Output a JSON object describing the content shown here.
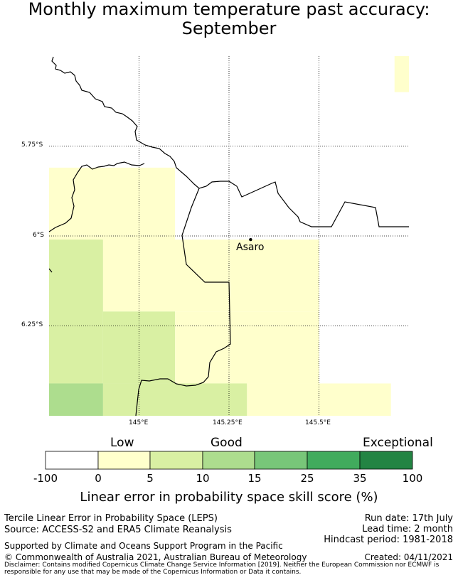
{
  "title": {
    "line1": "Monthly maximum temperature past accuracy:",
    "line2": "September"
  },
  "map": {
    "lat_labels": [
      "5.75°S",
      "6°S",
      "6.25°S"
    ],
    "lon_labels": [
      "145°E",
      "145.25°E",
      "145.5°E"
    ],
    "place_label": "Asaro",
    "bounds": {
      "lon_min": 144.75,
      "lon_max": 145.75,
      "lat_min": -6.5,
      "lat_max": -5.5
    },
    "grid_lons": [
      145.0,
      145.25,
      145.5
    ],
    "grid_lats": [
      -5.75,
      -6.0,
      -6.25
    ],
    "place": {
      "lon": 145.31,
      "lat": -6.01
    },
    "cells": [
      {
        "lon0": 145.71,
        "lon1": 145.75,
        "lat0": -5.5,
        "lat1": -5.6,
        "bin": 1
      },
      {
        "lon0": 144.75,
        "lon1": 145.1,
        "lat0": -5.81,
        "lat1": -6.01,
        "bin": 1
      },
      {
        "lon0": 144.75,
        "lon1": 144.9,
        "lat0": -6.01,
        "lat1": -6.41,
        "bin": 2
      },
      {
        "lon0": 144.9,
        "lon1": 145.5,
        "lat0": -6.01,
        "lat1": -6.21,
        "bin": 1
      },
      {
        "lon0": 144.9,
        "lon1": 145.1,
        "lat0": -6.21,
        "lat1": -6.41,
        "bin": 2
      },
      {
        "lon0": 145.1,
        "lon1": 145.5,
        "lat0": -6.21,
        "lat1": -6.41,
        "bin": 1
      },
      {
        "lon0": 144.75,
        "lon1": 144.9,
        "lat0": -6.41,
        "lat1": -6.5,
        "bin": 3
      },
      {
        "lon0": 144.9,
        "lon1": 145.3,
        "lat0": -6.41,
        "lat1": -6.5,
        "bin": 2
      },
      {
        "lon0": 145.3,
        "lon1": 145.7,
        "lat0": -6.41,
        "lat1": -6.5,
        "bin": 1
      }
    ]
  },
  "colorbar": {
    "label_low": "Low",
    "label_good": "Good",
    "label_exceptional": "Exceptional",
    "ticks": [
      "-100",
      "0",
      "5",
      "10",
      "15",
      "25",
      "35",
      "100"
    ],
    "colors": [
      "#ffffff",
      "#ffffcc",
      "#d9f0a3",
      "#addd8e",
      "#78c679",
      "#41ab5d",
      "#238443"
    ],
    "title": "Linear error in probability space skill score (%)"
  },
  "footer": {
    "method": "Tercile Linear Error in Probability Space (LEPS)",
    "source": "Source: ACCESS-S2 and ERA5 Climate Reanalysis",
    "run_date": "Run date: 17th July",
    "lead_time": "Lead time: 2 month",
    "hindcast": "Hindcast period: 1981-2018",
    "support": "Supported by Climate and Oceans Support Program in the Pacific",
    "copyright": "© Commonwealth of Australia 2021, Australian Bureau of Meteorology",
    "created": "Created: 04/11/2021",
    "disclaimer": "Disclaimer: Contains modified Copernicus Climate Change Service Information [2019]. Neither the European Commission nor ECMWF is responsible for any use that may be made of the Copernicus Information or Data it contains."
  }
}
